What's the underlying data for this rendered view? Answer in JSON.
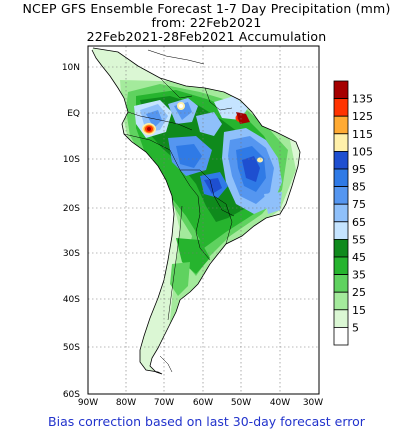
{
  "title": {
    "line1": "NCEP GFS Ensemble Forecast 1-7 Day Precipitation (mm)",
    "line2": "from: 22Feb2021",
    "line3": "22Feb2021-28Feb2021 Accumulation"
  },
  "footer": "Bias correction based on last 30-day forecast error",
  "axes": {
    "lat_labels": [
      "10N",
      "EQ",
      "10S",
      "20S",
      "30S",
      "40S",
      "50S",
      "60S"
    ],
    "lon_labels": [
      "90W",
      "80W",
      "70W",
      "60W",
      "50W",
      "40W",
      "30W"
    ]
  },
  "legend": {
    "levels": [
      {
        "label": "135",
        "color": "#a50000"
      },
      {
        "label": "125",
        "color": "#ff3300"
      },
      {
        "label": "115",
        "color": "#ffaa33"
      },
      {
        "label": "105",
        "color": "#fff0aa"
      },
      {
        "label": "95",
        "color": "#1e4fd0"
      },
      {
        "label": "85",
        "color": "#2f7ae6"
      },
      {
        "label": "75",
        "color": "#5596f0"
      },
      {
        "label": "65",
        "color": "#8fc0fa"
      },
      {
        "label": "55",
        "color": "#c5e4ff"
      },
      {
        "label": "45",
        "color": "#0f8a1c"
      },
      {
        "label": "35",
        "color": "#26b42e"
      },
      {
        "label": "25",
        "color": "#5fd25f"
      },
      {
        "label": "15",
        "color": "#a4ea9c"
      },
      {
        "label": "5",
        "color": "#dbf7d4"
      },
      {
        "label": "",
        "color": "#ffffff"
      }
    ]
  }
}
